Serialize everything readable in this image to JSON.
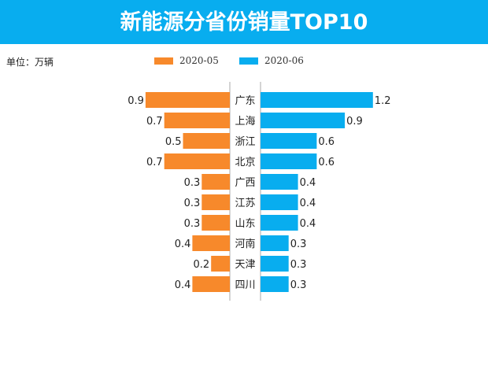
{
  "chart_data": {
    "type": "bar",
    "title": "新能源分省份销量TOP10",
    "unit_label": "单位：万辆",
    "categories": [
      "广东",
      "上海",
      "浙江",
      "北京",
      "广西",
      "江苏",
      "山东",
      "河南",
      "天津",
      "四川"
    ],
    "series": [
      {
        "name": "2020-05",
        "color": "#f7892b",
        "side": "left",
        "values": [
          0.9,
          0.7,
          0.5,
          0.7,
          0.3,
          0.3,
          0.3,
          0.4,
          0.2,
          0.4
        ]
      },
      {
        "name": "2020-06",
        "color": "#08adef",
        "side": "right",
        "values": [
          1.2,
          0.9,
          0.6,
          0.6,
          0.4,
          0.4,
          0.4,
          0.3,
          0.3,
          0.3
        ]
      }
    ],
    "legend": "top-center",
    "grid": false
  }
}
